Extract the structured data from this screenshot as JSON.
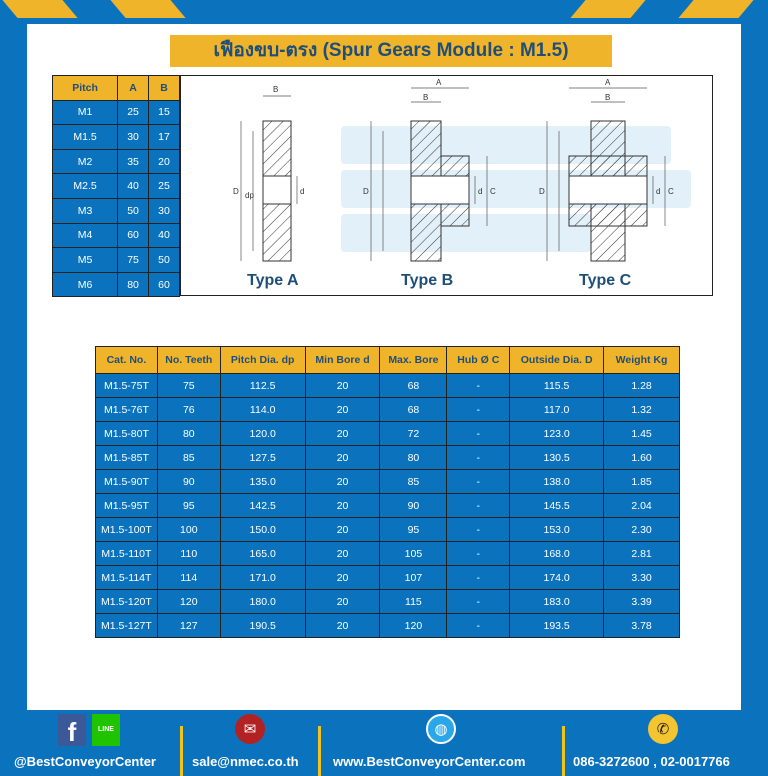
{
  "title": "เฟืองขบ-ตรง (Spur Gears Module : M1.5)",
  "colors": {
    "brand_blue": "#0b73bd",
    "accent_yellow": "#f0b42a",
    "text_navy": "#1f4e79"
  },
  "pitch_table": {
    "headers": [
      "Pitch",
      "A",
      "B"
    ],
    "rows": [
      [
        "M1",
        "25",
        "15"
      ],
      [
        "M1.5",
        "30",
        "17"
      ],
      [
        "M2",
        "35",
        "20"
      ],
      [
        "M2.5",
        "40",
        "25"
      ],
      [
        "M3",
        "50",
        "30"
      ],
      [
        "M4",
        "60",
        "40"
      ],
      [
        "M5",
        "75",
        "50"
      ],
      [
        "M6",
        "80",
        "60"
      ]
    ]
  },
  "diagram": {
    "types": [
      "Type A",
      "Type B",
      "Type C"
    ],
    "labels": {
      "a": "A",
      "b": "B",
      "d_outer": "D",
      "dp": "dp",
      "d": "d",
      "c": "C"
    },
    "watermark": "BEST CONVEYOR CENTER"
  },
  "spec_table": {
    "headers": [
      "Cat. No.",
      "No. Teeth",
      "Pitch Dia. dp",
      "Min Bore d",
      "Max. Bore",
      "Hub Ø C",
      "Outside Dia. D",
      "Weight Kg"
    ],
    "rows": [
      [
        "M1.5-75T",
        "75",
        "112.5",
        "20",
        "68",
        "-",
        "115.5",
        "1.28"
      ],
      [
        "M1.5-76T",
        "76",
        "114.0",
        "20",
        "68",
        "-",
        "117.0",
        "1.32"
      ],
      [
        "M1.5-80T",
        "80",
        "120.0",
        "20",
        "72",
        "-",
        "123.0",
        "1.45"
      ],
      [
        "M1.5-85T",
        "85",
        "127.5",
        "20",
        "80",
        "-",
        "130.5",
        "1.60"
      ],
      [
        "M1.5-90T",
        "90",
        "135.0",
        "20",
        "85",
        "-",
        "138.0",
        "1.85"
      ],
      [
        "M1.5-95T",
        "95",
        "142.5",
        "20",
        "90",
        "-",
        "145.5",
        "2.04"
      ],
      [
        "M1.5-100T",
        "100",
        "150.0",
        "20",
        "95",
        "-",
        "153.0",
        "2.30"
      ],
      [
        "M1.5-110T",
        "110",
        "165.0",
        "20",
        "105",
        "-",
        "168.0",
        "2.81"
      ],
      [
        "M1.5-114T",
        "114",
        "171.0",
        "20",
        "107",
        "-",
        "174.0",
        "3.30"
      ],
      [
        "M1.5-120T",
        "120",
        "180.0",
        "20",
        "115",
        "-",
        "183.0",
        "3.39"
      ],
      [
        "M1.5-127T",
        "127",
        "190.5",
        "20",
        "120",
        "-",
        "193.5",
        "3.78"
      ]
    ]
  },
  "footer": {
    "social": "@BestConveyorCenter",
    "email": "sale@nmec.co.th",
    "website": "www.BestConveyorCenter.com",
    "phone": "086-3272600 , 02-0017766",
    "line_label": "LINE"
  }
}
